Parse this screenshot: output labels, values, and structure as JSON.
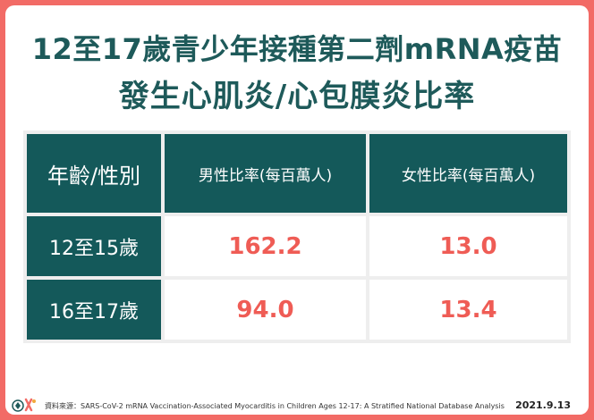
{
  "title_line1": "12至17歲青少年接種第二劑mRNA疫苗",
  "title_line2": "發生心肌炎/心包膜炎比率",
  "table": {
    "headers": [
      "年齡/性別",
      "男性比率(每百萬人)",
      "女性比率(每百萬人)"
    ],
    "rows": [
      {
        "age": "12至15歲",
        "male": "162.2",
        "female": "13.0"
      },
      {
        "age": "16至17歲",
        "male": "94.0",
        "female": "13.4"
      }
    ]
  },
  "footer": {
    "source": "資料來源：SARS-CoV-2 mRNA Vaccination-Associated  Myocarditis in Children Ages 12-17: A Stratified National Database Analysis",
    "date": "2021.9.13",
    "logo_icon": "cdc-logo-icon"
  },
  "colors": {
    "border": "#f26b66",
    "title": "#1e5a5a",
    "header_bg": "#14595a",
    "value_red": "#ef5c55"
  }
}
